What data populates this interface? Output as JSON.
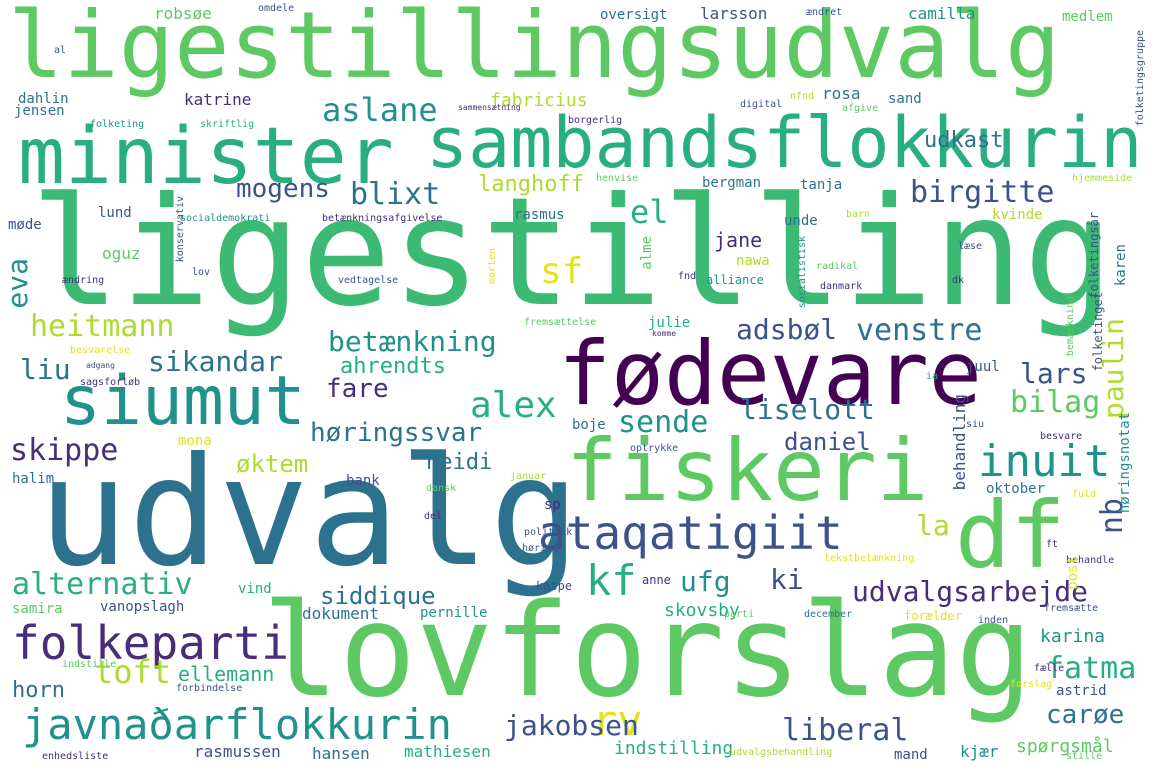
{
  "words": {
    "ligestillingsudvalg": "ligestillingsudvalg",
    "minister": "minister",
    "sambandsflokkurin": "sambandsflokkurin",
    "ligestilling": "ligestilling",
    "fodevare": "fødevare",
    "udvalg": "udvalg",
    "fiskeri": "fiskeri",
    "siumut": "siumut",
    "df": "df",
    "lovforslag": "lovforslag",
    "javnadarflokkurin": "javnaðarflokkurin",
    "folkeparti": "folkeparti",
    "ataqatigiit": "ataqatigiit",
    "inuit": "inuit",
    "aslane": "aslane",
    "mogens": "mogens",
    "blixt": "blixt",
    "birgitte": "birgitte",
    "udkast": "udkast",
    "langhoff": "langhoff",
    "el": "el",
    "sf": "sf",
    "heitmann": "heitmann",
    "betaenkning": "betænkning",
    "adsbol": "adsbøl",
    "venstre": "venstre",
    "paulin": "paulin",
    "sikandar": "sikandar",
    "alex": "alex",
    "liselott": "liselott",
    "sende": "sende",
    "horingssvar": "høringssvar",
    "bilag": "bilag",
    "lars": "lars",
    "fare": "fare",
    "ahrendts": "ahrendts",
    "liu": "liu",
    "eva": "eva",
    "skippe": "skippe",
    "oktem": "øktem",
    "heidi": "heidi",
    "daniel": "daniel",
    "nb": "nb",
    "la": "la",
    "kf": "kf",
    "alternativ": "alternativ",
    "ufg": "ufg",
    "ki": "ki",
    "udvalgsarbejde": "udvalgsarbejde",
    "toft": "toft",
    "siddique": "siddique",
    "rv": "rv",
    "fatma": "fatma",
    "caroe": "carøe",
    "liberal": "liberal",
    "jakobsen": "jakobsen",
    "horn": "horn",
    "ellemann": "ellemann",
    "skovsby": "skovsby",
    "karina": "karina",
    "indstilling": "indstilling",
    "mathiesen": "mathiesen",
    "spoergsmaal": "spørgsmål",
    "rasmussen": "rasmussen",
    "hansen": "hansen",
    "kjaer": "kjær",
    "mand": "mand",
    "dokument": "dokument",
    "pernille": "pernille",
    "vanopslagh": "vanopslagh",
    "samira": "samira",
    "vind": "vind",
    "kaspe": "kaspe",
    "anne": "anne",
    "robsoe": "robsøe",
    "omdele": "omdele",
    "oversigt": "oversigt",
    "larsson": "larsson",
    "camilla": "camilla",
    "medlem": "medlem",
    "al": "al",
    "dahlin": "dahlin",
    "jensen": "jensen",
    "katrine": "katrine",
    "fabricius": "fabricius",
    "rosa": "rosa",
    "sand": "sand",
    "folketing": "folketing",
    "skriftlig": "skriftlig",
    "sammensaetning": "sammensætning",
    "borgerlig": "borgerlig",
    "digital": "digital",
    "afgive": "afgive",
    "aendret": "ændret",
    "nfnd": "nfnd",
    "folketingsgruppe": "folketingsgruppe",
    "mode": "møde",
    "lund": "lund",
    "socialdemokrati": "socialdemokrati",
    "betaenkningsafgivelse": "betænkningsafgivelse",
    "rasmus": "rasmus",
    "henvise": "henvise",
    "bergman": "bergman",
    "unde": "unde",
    "barn": "barn",
    "kvinde": "kvinde",
    "hjemmeside": "hjemmeside",
    "laese": "læse",
    "karen": "karen",
    "folketingsaar": "folketingsår",
    "tanja": "tanja",
    "jane": "jane",
    "nawa": "nawa",
    "oguz": "oguz",
    "konservativ": "konservativ",
    "lov": "lov",
    "aendring": "ændring",
    "vedtagelse": "vedtagelse",
    "alme": "alme",
    "fnd": "fnd",
    "alliance": "alliance",
    "radikal": "radikal",
    "socialistisk": "socialistisk",
    "danmark": "danmark",
    "dk": "dk",
    "bemaerkning": "bemærkning",
    "fremsaettelse": "fremsættelse",
    "morten": "morten",
    "julie": "julie",
    "komme": "komme",
    "folketinget": "folketinget",
    "besvarelse": "besvarelse",
    "adgang": "adgang",
    "sagsforlob": "sagsforløb",
    "ia": "ia",
    "juul": "juul",
    "behandling": "behandling",
    "horingsnotat": "høringsnotat",
    "siu": "siu",
    "mona": "mona",
    "boje": "boje",
    "optrykke": "optrykke",
    "besvare": "besvare",
    "halim": "halim",
    "bank": "bank",
    "januar": "januar",
    "dansk": "dansk",
    "sp": "sp",
    "oktober": "oktober",
    "fuld": "fuld",
    "del": "del",
    "politisk": "politisk",
    "horing": "høring",
    "tekstbetaenkning": "tekstbetænkning",
    "ft": "ft",
    "behandle": "behandle",
    "post": "post",
    "parti": "parti",
    "december": "december",
    "foraelder": "forælder",
    "inden": "inden",
    "fremsaette": "fremsætte",
    "indstille": "indstille",
    "forbindelse": "forbindelse",
    "forslag": "forslag",
    "faelle": "fælle",
    "astrid": "astrid",
    "udvalgsbehandling": "udvalgsbehandling",
    "stille": "stille",
    "enhedsliste": "enhedsliste"
  },
  "colors": {
    "dark_purple": "#440154",
    "indigo": "#472d7b",
    "slate_blue": "#3b528b",
    "blue": "#2c728e",
    "teal": "#21918c",
    "sea_green": "#28ae80",
    "green": "#5ec962",
    "yellow_green": "#addc30",
    "yellow": "#e2e418"
  }
}
